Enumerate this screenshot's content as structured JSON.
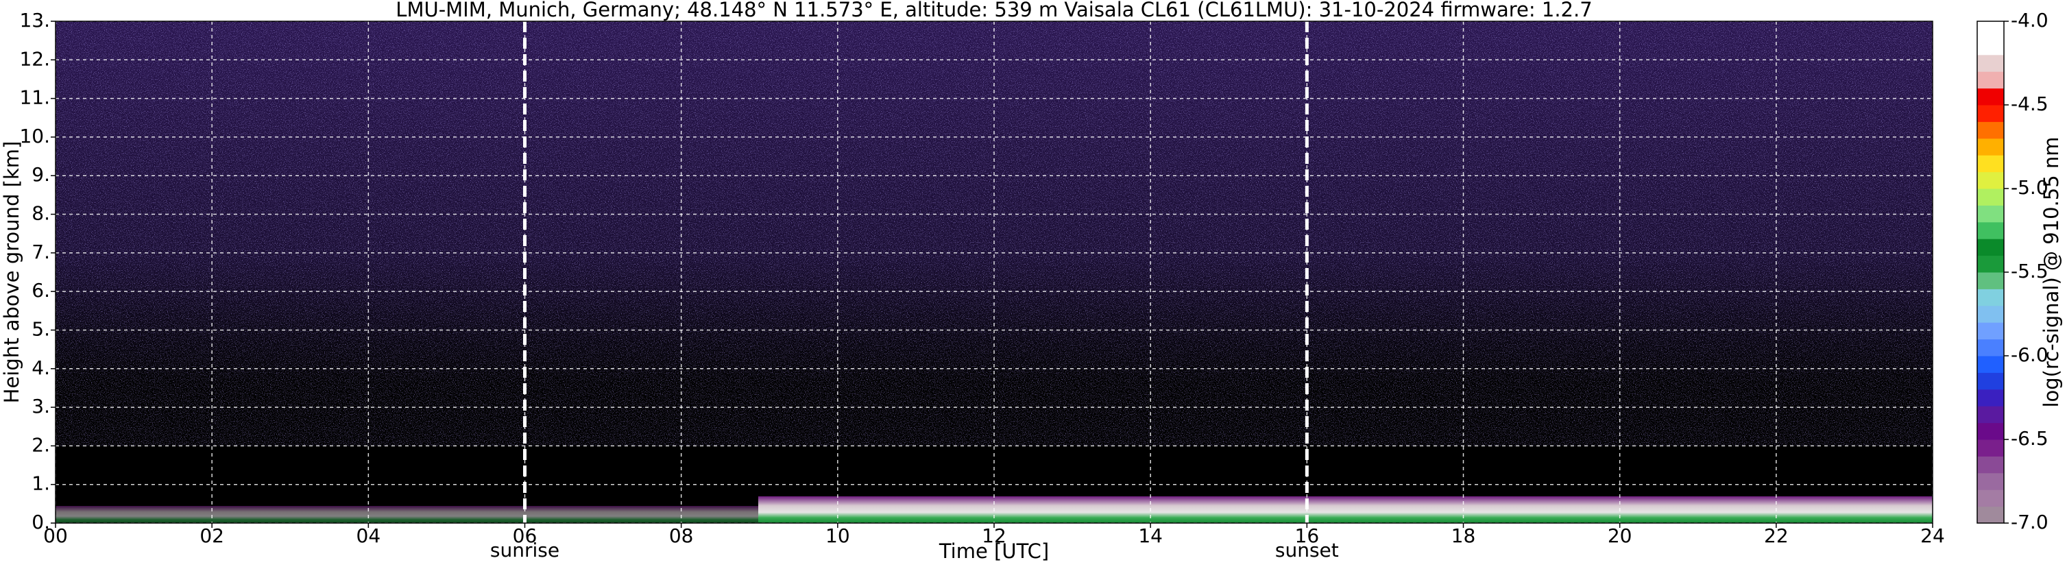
{
  "chart_data": {
    "type": "heatmap",
    "title": "LMU-MIM, Munich, Germany; 48.148° N 11.573° E, altitude: 539 m    Vaisala CL61 (CL61LMU): 31-10-2024    firmware: 1.2.7",
    "x_label": "Time [UTC]",
    "y_label": "Height above ground [km]",
    "xlim": [
      0,
      24
    ],
    "xticks": [
      {
        "value": 0,
        "label": "00"
      },
      {
        "value": 2,
        "label": "02"
      },
      {
        "value": 4,
        "label": "04"
      },
      {
        "value": 6,
        "label": "06"
      },
      {
        "value": 8,
        "label": "08"
      },
      10,
      12,
      14,
      16,
      18,
      20,
      22,
      24
    ],
    "ylim": [
      0,
      13
    ],
    "yticks": [
      {
        "value": 0,
        "label": "0."
      },
      {
        "value": 1,
        "label": "1."
      },
      {
        "value": 2,
        "label": "2."
      },
      {
        "value": 3,
        "label": "3."
      },
      {
        "value": 4,
        "label": "4."
      },
      {
        "value": 5,
        "label": "5."
      },
      {
        "value": 6,
        "label": "6."
      },
      {
        "value": 7,
        "label": "7."
      },
      {
        "value": 8,
        "label": "8."
      },
      {
        "value": 9,
        "label": "9."
      },
      {
        "value": 10,
        "label": "10."
      },
      {
        "value": 11,
        "label": "11."
      },
      {
        "value": 12,
        "label": "12."
      },
      {
        "value": 13,
        "label": "13."
      }
    ],
    "grid": true,
    "annotations": [
      {
        "x": 6,
        "label": "sunrise"
      },
      {
        "x": 16,
        "label": "sunset"
      }
    ],
    "colorbar": {
      "label": "log(rc-signal) @ 910.55 nm",
      "lim": [
        -7,
        -4
      ],
      "ticks": [
        {
          "value": -4,
          "label": "-4.0"
        },
        -4.5,
        {
          "value": -5,
          "label": "-5.0"
        },
        -5.5,
        {
          "value": -6,
          "label": "-6.0"
        },
        -6.5,
        {
          "value": -7,
          "label": "-7.0"
        }
      ],
      "colors": [
        "#a08a9c",
        "#a47ca4",
        "#9a6aa0",
        "#8a4a96",
        "#7a1f8c",
        "#6a0a8a",
        "#5a1aa0",
        "#3a20c0",
        "#2040e0",
        "#2060ff",
        "#4a80ff",
        "#70a0ff",
        "#80c0f0",
        "#80d0e0",
        "#60c080",
        "#1a9a3a",
        "#0a8a2a",
        "#40c060",
        "#80e080",
        "#b0f060",
        "#e0f040",
        "#ffe020",
        "#ffb000",
        "#ff7000",
        "#ff2000",
        "#f00000",
        "#f0b0b0",
        "#e8d0d0",
        "#ffffff",
        "#ffffff"
      ]
    }
  }
}
